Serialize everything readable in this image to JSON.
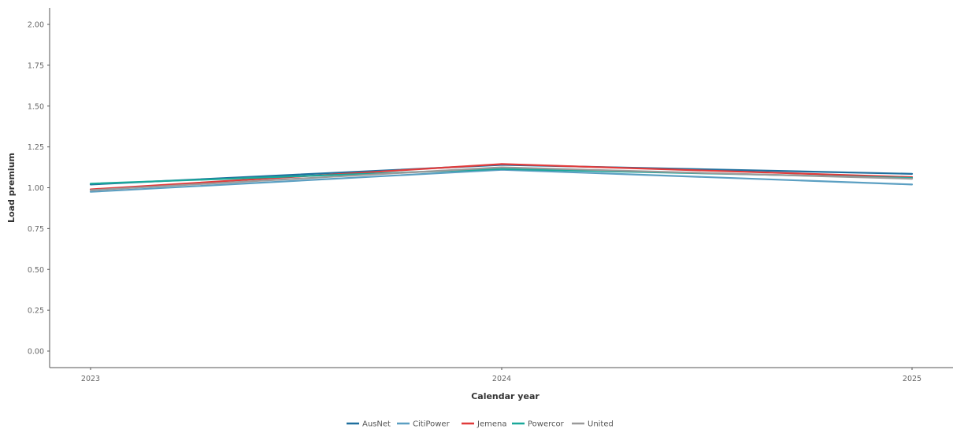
{
  "chart_data": {
    "type": "line",
    "title": "",
    "xlabel": "Calendar year",
    "ylabel": "Load premium",
    "categories": [
      "2023",
      "2024",
      "2025"
    ],
    "ylim": [
      0,
      2
    ],
    "yticks": [
      "0.00",
      "0.25",
      "0.50",
      "0.75",
      "1.00",
      "1.25",
      "1.50",
      "1.75",
      "2.00"
    ],
    "grid": false,
    "legend_position": "bottom",
    "series": [
      {
        "name": "AusNet",
        "color": "#1f6f9e",
        "values": [
          1.02,
          1.14,
          1.085
        ]
      },
      {
        "name": "CitiPower",
        "color": "#5b9fc2",
        "values": [
          0.975,
          1.11,
          1.02
        ]
      },
      {
        "name": "Jemena",
        "color": "#e03b3b",
        "values": [
          0.99,
          1.145,
          1.065
        ]
      },
      {
        "name": "Powercor",
        "color": "#1aa89a",
        "values": [
          1.025,
          1.115,
          1.06
        ]
      },
      {
        "name": "United",
        "color": "#9a9a9a",
        "values": [
          0.985,
          1.125,
          1.055
        ]
      }
    ]
  }
}
